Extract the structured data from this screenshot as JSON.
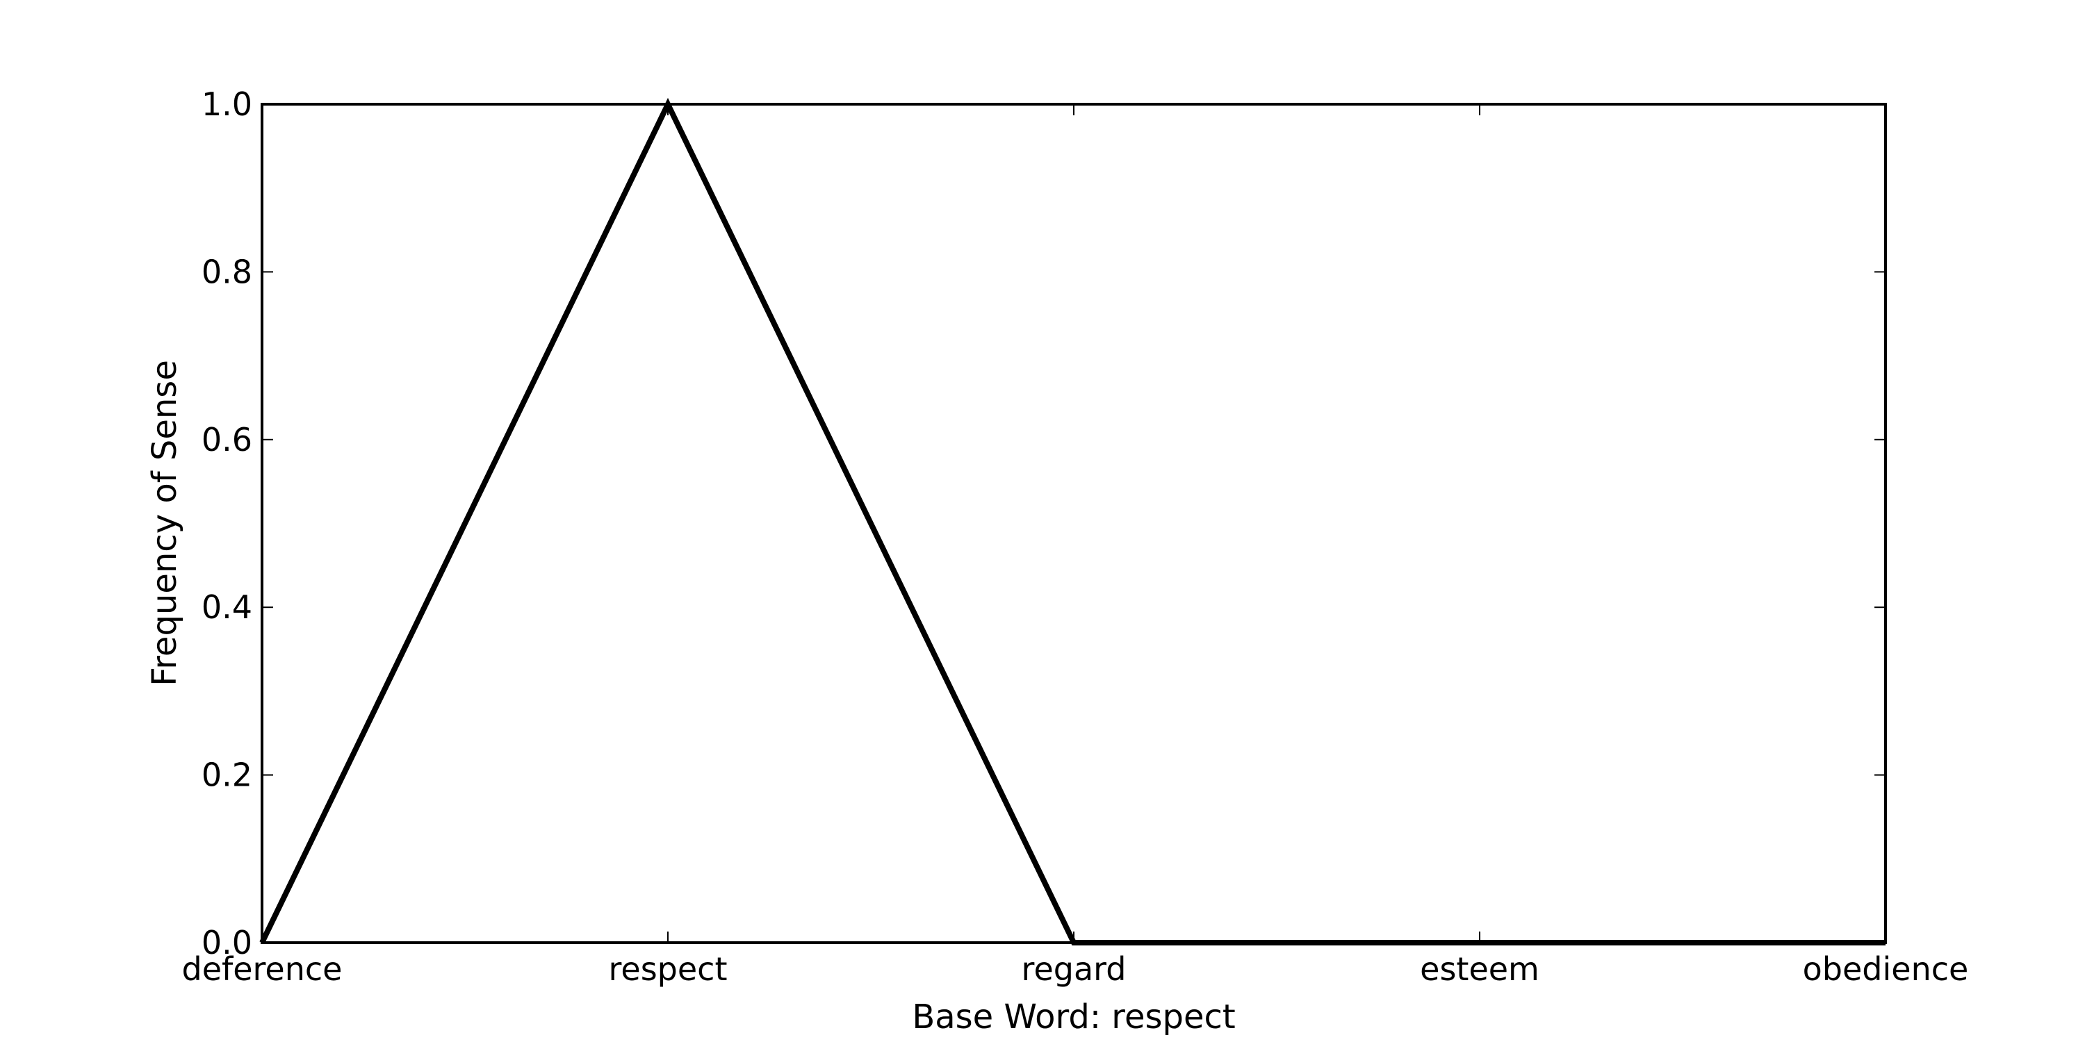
{
  "chart_data": {
    "type": "line",
    "categories": [
      "deference",
      "respect",
      "regard",
      "esteem",
      "obedience"
    ],
    "series": [
      {
        "values": [
          0.0,
          1.0,
          0.0,
          0.0,
          0.0
        ]
      }
    ],
    "xlabel": "Base Word: respect",
    "ylabel": "Frequency of Sense",
    "ylim": [
      0.0,
      1.0
    ],
    "yticks": [
      "0.0",
      "0.2",
      "0.4",
      "0.6",
      "0.8",
      "1.0"
    ],
    "grid": false,
    "colors": {
      "line": "#000000",
      "axes": "#000000"
    }
  }
}
